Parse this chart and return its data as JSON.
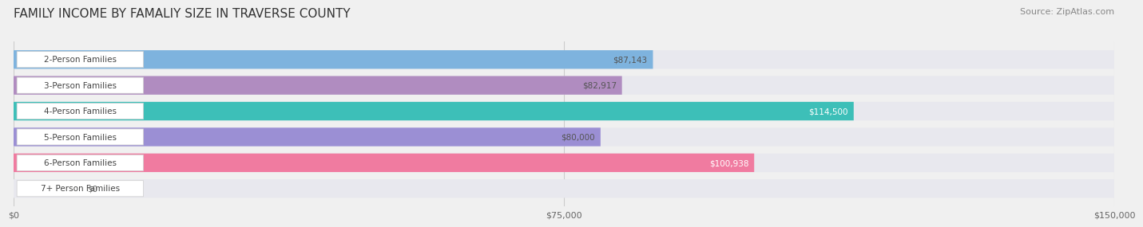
{
  "title": "FAMILY INCOME BY FAMALIY SIZE IN TRAVERSE COUNTY",
  "source": "Source: ZipAtlas.com",
  "categories": [
    "2-Person Families",
    "3-Person Families",
    "4-Person Families",
    "5-Person Families",
    "6-Person Families",
    "7+ Person Families"
  ],
  "values": [
    87143,
    82917,
    114500,
    80000,
    100938,
    0
  ],
  "bar_colors": [
    "#7EB3DE",
    "#B08CC0",
    "#3DBFB8",
    "#9B8FD4",
    "#F07BA0",
    "#F2C9A0"
  ],
  "value_labels": [
    "$87,143",
    "$82,917",
    "$114,500",
    "$80,000",
    "$100,938",
    "$0"
  ],
  "value_label_colors": [
    "#555555",
    "#555555",
    "#ffffff",
    "#555555",
    "#ffffff",
    "#555555"
  ],
  "xlim": [
    0,
    150000
  ],
  "xticks": [
    0,
    75000,
    150000
  ],
  "xticklabels": [
    "$0",
    "$75,000",
    "$150,000"
  ],
  "background_color": "#f0f0f0",
  "bar_background_color": "#e8e8ee",
  "title_fontsize": 11,
  "source_fontsize": 8,
  "label_fontsize": 7.5,
  "tick_fontsize": 8
}
